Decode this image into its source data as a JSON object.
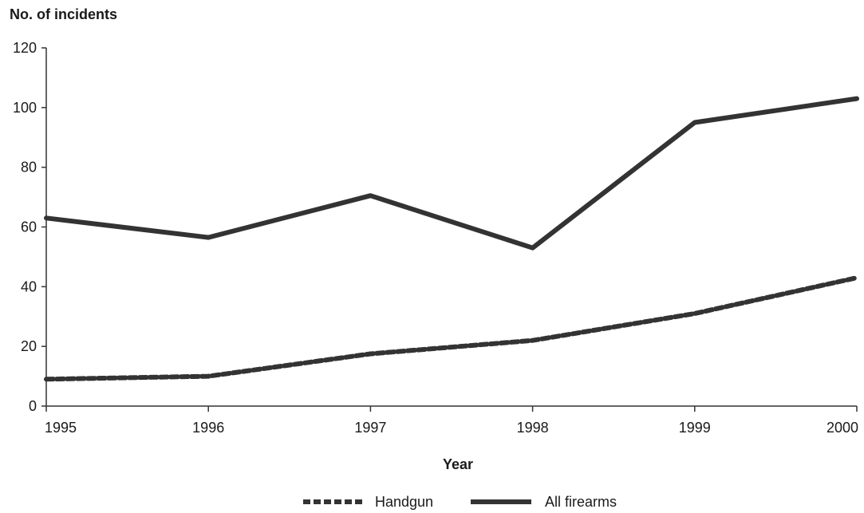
{
  "chart_data": {
    "type": "line",
    "title": "",
    "ylabel": "No. of incidents",
    "xlabel": "Year",
    "x": [
      1995,
      1996,
      1997,
      1998,
      1999,
      2000
    ],
    "x_tick_labels": [
      "1995",
      "1996",
      "1997",
      "1998",
      "1999",
      "2000"
    ],
    "ylim": [
      0,
      120
    ],
    "y_ticks": [
      0,
      20,
      40,
      60,
      80,
      100,
      120
    ],
    "grid": false,
    "legend_position": "bottom",
    "series": [
      {
        "name": "Handgun",
        "style": "dashed",
        "color": "#333333",
        "values": [
          9,
          10,
          17.5,
          22,
          31,
          43
        ]
      },
      {
        "name": "All firearms",
        "style": "solid",
        "color": "#333333",
        "values": [
          63,
          56.5,
          70.5,
          53,
          95,
          103
        ]
      }
    ]
  }
}
